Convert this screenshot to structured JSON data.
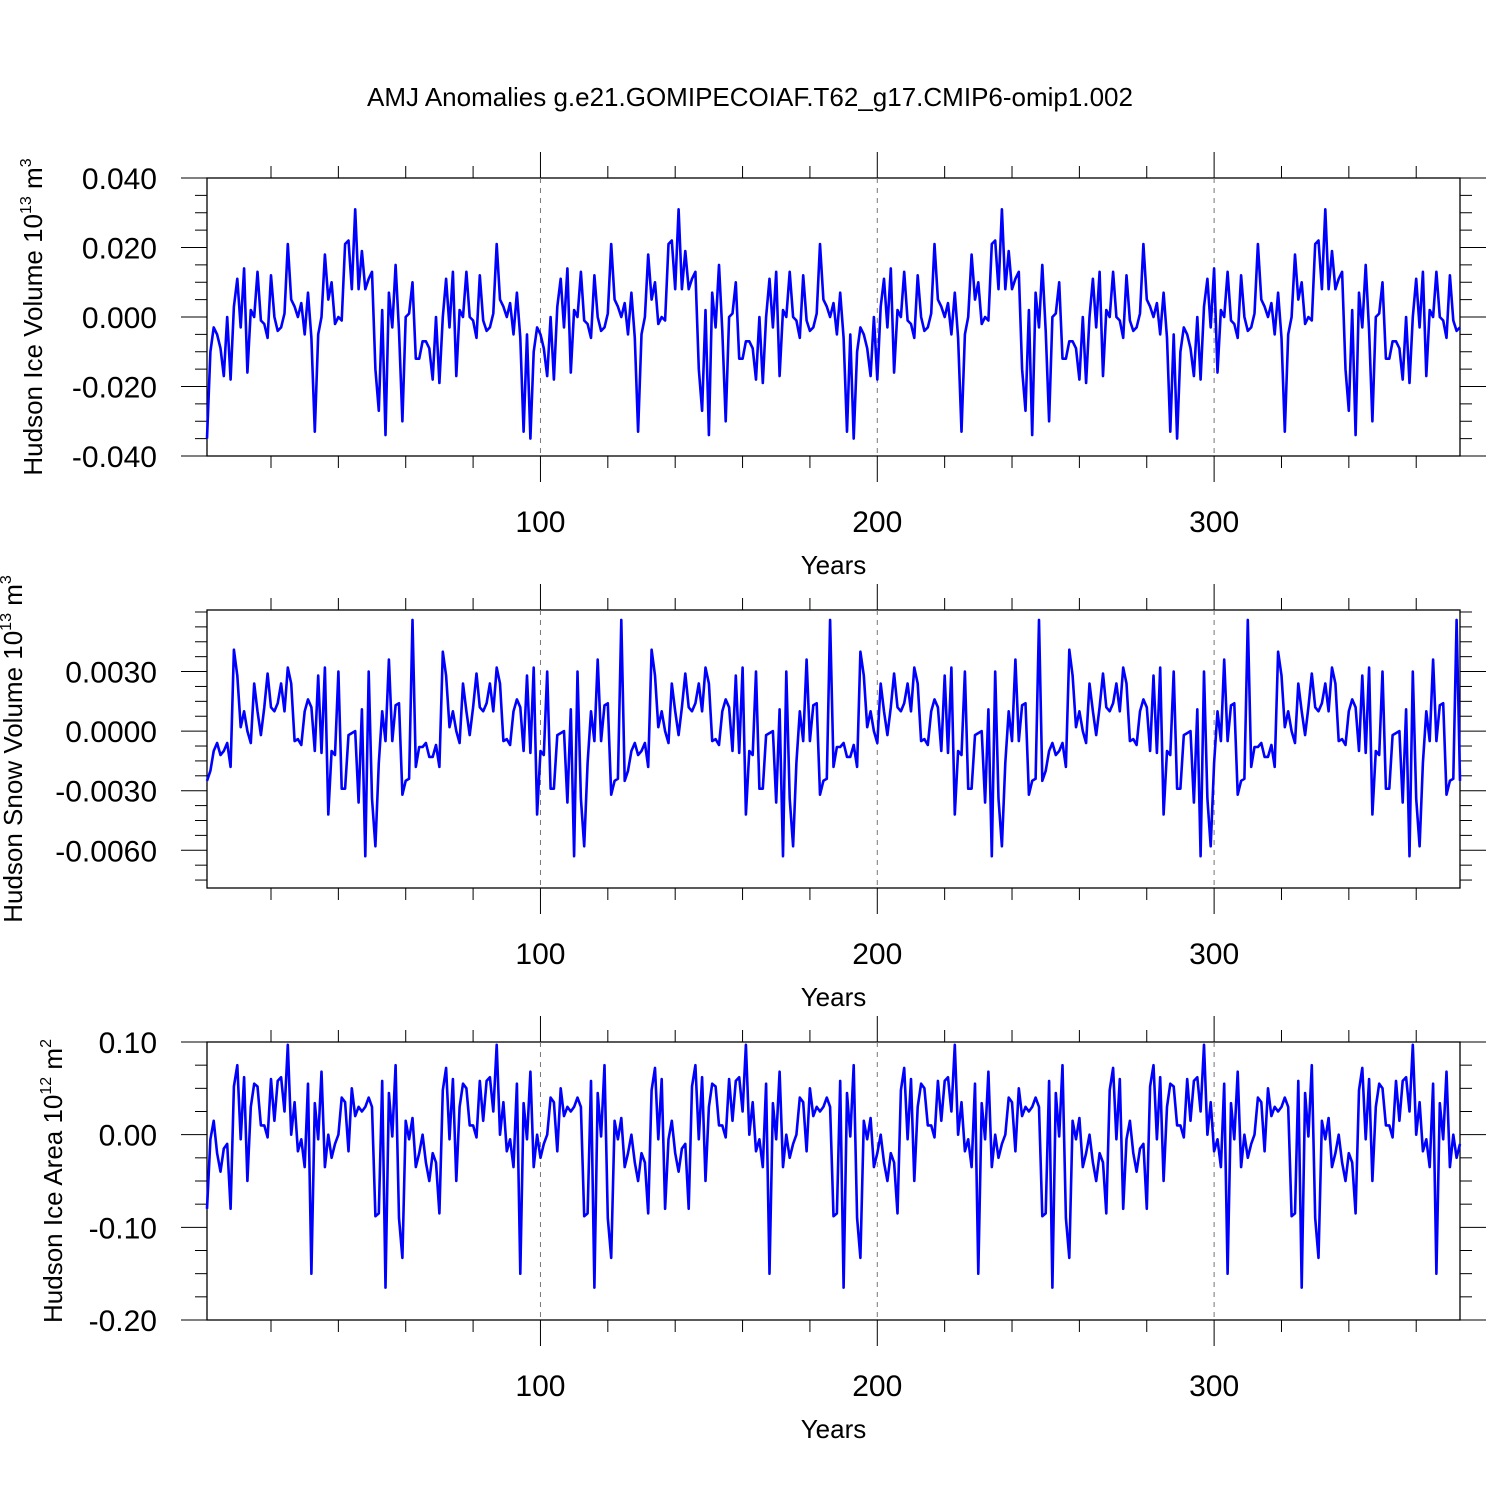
{
  "title": "AMJ Anomalies g.e21.GOMIPECOIAF.T62_g17.CMIP6-omip1.002",
  "line_color": "#0000ff",
  "chart_data": [
    {
      "type": "line",
      "ylabel_main": "Hudson Ice Volume 10",
      "ylabel_sup": "13",
      "ylabel_unit": " m",
      "ylabel_unit_sup": "3",
      "xlabel": "Years",
      "xlim": [
        1,
        373
      ],
      "ylim": [
        -0.04,
        0.04
      ],
      "xticks": [
        100,
        200,
        300
      ],
      "xtick_labels": [
        "100",
        "200",
        "300"
      ],
      "yticks": [
        -0.04,
        -0.02,
        0.0,
        0.02,
        0.04
      ],
      "ytick_labels": [
        "-0.040",
        "-0.020",
        "0.000",
        "0.020",
        "0.040"
      ],
      "ylim_pad": [
        0,
        0
      ],
      "x_start": 1,
      "cycle": [
        -0.035,
        -0.01,
        -0.003,
        -0.005,
        -0.009,
        -0.017,
        0.0,
        -0.018,
        0.003,
        0.011,
        -0.003,
        0.014,
        -0.016,
        0.002,
        0.0,
        0.013,
        -0.001,
        -0.002,
        -0.006,
        0.012,
        0.0,
        -0.004,
        -0.003,
        0.001,
        0.021,
        0.005,
        0.003,
        0.0,
        0.004,
        -0.005,
        0.007,
        -0.006,
        -0.033,
        -0.005,
        0.0,
        0.018,
        0.005,
        0.01,
        -0.002,
        0.0,
        -0.001,
        0.021,
        0.022,
        0.008,
        0.031,
        0.008,
        0.019,
        0.008,
        0.011,
        0.013,
        -0.015,
        -0.027,
        0.002,
        -0.034,
        0.007,
        -0.003,
        0.015,
        -0.004,
        -0.03,
        0.0,
        0.001,
        0.01,
        -0.012,
        -0.012,
        -0.007,
        -0.007,
        -0.009,
        -0.018,
        0.0,
        -0.019,
        0.0,
        0.011,
        -0.003,
        0.013,
        -0.017,
        0.002,
        0.0,
        0.013,
        0.0,
        -0.001,
        -0.006,
        0.012,
        -0.001,
        -0.004,
        -0.003,
        0.001,
        0.021,
        0.005,
        0.003,
        0.0,
        0.004,
        -0.005,
        0.007,
        -0.006,
        -0.033,
        -0.005
      ]
    },
    {
      "type": "line",
      "ylabel_main": "Hudson Snow Volume 10",
      "ylabel_sup": "13",
      "ylabel_unit": " m",
      "ylabel_unit_sup": "3",
      "xlabel": "Years",
      "xlim": [
        1,
        373
      ],
      "ylim": [
        -0.0079,
        0.0061
      ],
      "xticks": [
        100,
        200,
        300
      ],
      "xtick_labels": [
        "100",
        "200",
        "300"
      ],
      "yticks": [
        -0.006,
        -0.003,
        0.0,
        0.003
      ],
      "ytick_labels": [
        "-0.0060",
        "-0.0030",
        "0.0000",
        "0.0030"
      ],
      "x_start": 1,
      "cycle": [
        -0.0025,
        -0.002,
        -0.001,
        -0.0006,
        -0.0012,
        -0.001,
        -0.0006,
        -0.0018,
        0.0041,
        0.0028,
        0.0002,
        0.001,
        0.0,
        -0.0006,
        0.0024,
        0.001,
        -0.0002,
        0.0012,
        0.0029,
        0.0012,
        0.001,
        0.0014,
        0.0024,
        0.001,
        0.0032,
        0.0024,
        -0.0005,
        -0.0004,
        -0.0007,
        0.001,
        0.0016,
        0.0012,
        -0.001,
        0.0028,
        -0.0011,
        0.0032,
        -0.0042,
        -0.001,
        -0.0012,
        0.003,
        -0.0029,
        -0.0029,
        -0.0002,
        -0.0001,
        0.0,
        -0.0036,
        0.0011,
        -0.0063,
        0.003,
        -0.0034,
        -0.0058,
        -0.0016,
        0.001,
        -0.0005,
        0.0036,
        -0.0005,
        0.0013,
        0.0014,
        -0.0032,
        -0.0025,
        -0.0024,
        0.0056,
        -0.0018,
        -0.0008,
        -0.0008,
        -0.0006,
        -0.0013,
        -0.0013,
        -0.0007,
        -0.0018,
        0.004,
        0.0028,
        0.0002,
        0.001,
        0.0,
        -0.0006,
        0.0024,
        0.001,
        -0.0002,
        0.0012,
        0.0029,
        0.0012,
        0.001,
        0.0014,
        0.0024,
        0.001,
        0.0032,
        0.0024,
        -0.0005,
        -0.0004,
        -0.0007,
        0.001,
        0.0016,
        0.0012,
        -0.001,
        0.0028,
        -0.0011,
        0.0032,
        -0.0042,
        -0.001,
        -0.0012,
        0.003,
        -0.0029,
        -0.0029,
        -0.0002,
        -0.0001,
        0.0,
        -0.0036,
        0.0011,
        -0.0063,
        0.003,
        -0.0034,
        -0.0058,
        -0.0016,
        0.001,
        -0.0005,
        0.0036,
        -0.0005,
        0.0013,
        0.0014,
        -0.0032,
        -0.0025,
        -0.0024,
        0.0056
      ]
    },
    {
      "type": "line",
      "ylabel_main": "Hudson Ice Area 10",
      "ylabel_sup": "12",
      "ylabel_unit": " m",
      "ylabel_unit_sup": "2",
      "xlabel": "Years",
      "xlim": [
        1,
        373
      ],
      "ylim": [
        -0.2,
        0.1
      ],
      "xticks": [
        100,
        200,
        300
      ],
      "xtick_labels": [
        "100",
        "200",
        "300"
      ],
      "yticks": [
        -0.2,
        -0.1,
        0.0,
        0.1
      ],
      "ytick_labels": [
        "-0.20",
        "-0.10",
        "0.00",
        "0.10"
      ],
      "x_start": 1,
      "cycle": [
        -0.08,
        -0.005,
        0.015,
        -0.02,
        -0.04,
        -0.015,
        -0.01,
        -0.08,
        0.052,
        0.075,
        -0.005,
        0.062,
        -0.05,
        0.03,
        0.055,
        0.052,
        0.01,
        0.01,
        -0.003,
        0.06,
        0.015,
        0.058,
        0.062,
        0.025,
        0.097,
        0.0,
        0.035,
        -0.018,
        -0.005,
        -0.035,
        0.055,
        -0.15,
        0.034,
        -0.005,
        0.068,
        -0.035,
        0.0,
        -0.025,
        -0.01,
        0.0,
        0.04,
        0.035,
        -0.018,
        0.05,
        0.02,
        0.03,
        0.025,
        0.03,
        0.04,
        0.03,
        -0.088,
        -0.085,
        0.058,
        -0.165,
        0.045,
        -0.002,
        0.075,
        -0.09,
        -0.133,
        0.015,
        -0.005,
        0.018,
        -0.035,
        -0.02,
        0.0,
        -0.03,
        -0.05,
        -0.02,
        -0.03,
        -0.085,
        0.048,
        0.072,
        -0.005,
        0.06,
        -0.05,
        0.03,
        0.055,
        0.05,
        0.01,
        0.01,
        -0.003,
        0.058,
        0.015,
        0.058,
        0.062,
        0.025,
        0.097,
        0.0,
        0.035,
        -0.018,
        -0.005,
        -0.035,
        0.055,
        -0.15,
        0.034,
        -0.005,
        0.068,
        -0.035,
        0.0,
        -0.025,
        -0.01,
        0.0,
        0.04,
        0.035,
        -0.018,
        0.05,
        0.02,
        0.03,
        0.025,
        0.03,
        0.04,
        0.03,
        -0.088,
        -0.085,
        0.058,
        -0.165,
        0.045,
        -0.002,
        0.075,
        -0.09,
        -0.133,
        0.015,
        -0.005,
        0.018,
        -0.035,
        -0.02,
        0.0,
        -0.03,
        -0.05,
        -0.02,
        -0.03,
        -0.085,
        0.048,
        0.072,
        -0.005,
        0.06
      ]
    }
  ]
}
